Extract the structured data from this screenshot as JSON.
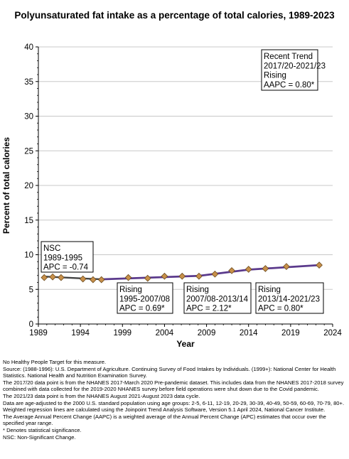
{
  "chart_data": {
    "type": "line",
    "title": "Polyunsaturated fat intake as a percentage of total calories, 1989-2023",
    "xlabel": "Year",
    "ylabel": "Percent of total calories",
    "xlim": [
      1989,
      2024
    ],
    "ylim": [
      0,
      40
    ],
    "x_ticks": [
      "1989",
      "1994",
      "1999",
      "2004",
      "2009",
      "2014",
      "2019",
      "2024"
    ],
    "y_ticks": [
      "0",
      "5",
      "10",
      "15",
      "20",
      "25",
      "30",
      "35",
      "40"
    ],
    "grid": true,
    "colors": {
      "nsc_line": "#444444",
      "trend_line": "#5b3a8c",
      "marker": "#c8904a",
      "marker_edge": "#6b4a1e"
    },
    "series": [
      {
        "x": [
          1989.7,
          1990.7,
          1991.7,
          1994.3,
          1995.5,
          1996.5
        ],
        "y": [
          6.7,
          6.8,
          6.7,
          6.5,
          6.4,
          6.4
        ]
      },
      {
        "x": [
          1996.5,
          1999.7,
          2002.0,
          2004.0,
          2006.1,
          2008.1,
          2010.0,
          2012.0,
          2014.0,
          2016.0,
          2018.5,
          2022.4
        ],
        "y": [
          6.4,
          6.7,
          6.6,
          6.9,
          6.9,
          6.9,
          7.2,
          7.7,
          7.9,
          8.0,
          8.3,
          8.5
        ]
      }
    ],
    "annotations": [
      {
        "lines": [
          "NSC",
          "1989-1995",
          "APC = -0.74"
        ]
      },
      {
        "lines": [
          "Rising",
          "1995-2007/08",
          "APC =  0.69*"
        ]
      },
      {
        "lines": [
          "Rising",
          "2007/08-2013/14",
          "APC =  2.12*"
        ]
      },
      {
        "lines": [
          "Rising",
          "2013/14-2021/23",
          "APC =  0.80*"
        ]
      },
      {
        "lines": [
          "Recent Trend",
          "2017/20-2021/23",
          "Rising",
          "AAPC =  0.80*"
        ]
      }
    ]
  },
  "footnotes": [
    "No Healthy People Target for this measure.",
    "Source: (1988-1996): U.S. Department of Agriculture. Continuing Survey of Food Intakes by Individuals. (1999+): National Center for Health Statistics. National Health and Nutrition Examination Survey.",
    "The 2017/20 data point is from the NHANES 2017-March 2020 Pre-pandemic dataset. This includes data from the NHANES 2017-2018 survey combined with data collected for the 2019-2020 NHANES survey before field operations were shut down due to the Covid pandemic.",
    "The 2021/23 data point is from the NHANES August 2021-August 2023 data cycle.",
    "Data are age-adjusted to the 2000 U.S. standard population using age groups: 2-5, 6-11, 12-19, 20-29, 30-39, 40-49, 50-59, 60-69, 70-79, 80+.",
    "Weighted regression lines are calculated using the Joinpoint Trend Analysis Software, Version 5.1 April 2024, National Cancer Institute.",
    "The Average Annual Percent Change (AAPC) is a weighted average of the Annual Percent Change (APC) estimates that occur over the specified year range.",
    "* Denotes statistical significance.",
    "NSC: Non-Significant Change."
  ]
}
